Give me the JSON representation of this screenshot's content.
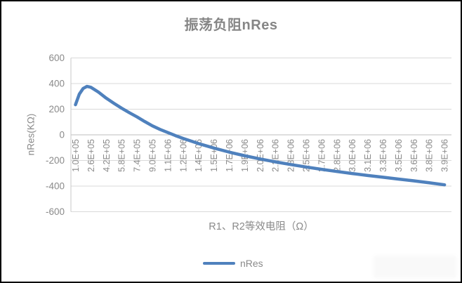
{
  "colors": {
    "line": "#4f81bd",
    "title_text": "#868686",
    "axis_text": "#8a8a8a",
    "gridline": "#d9d9d9",
    "zero_axis_line": "#bdbdbd",
    "y_axis_line": "#c9c9c9",
    "border": "#000000",
    "background": "#ffffff"
  },
  "chart_data": {
    "type": "line",
    "title": "振荡负阻nRes",
    "xlabel": "R1、R2等效电阻（Ω）",
    "ylabel": "nRes(KΩ)",
    "grid": true,
    "legend_position": "bottom-center",
    "ylim": [
      -600,
      600
    ],
    "xlim": [
      100000,
      4000000
    ],
    "y_ticks": [
      600,
      400,
      200,
      0,
      -200,
      -400,
      -600
    ],
    "x_tick_labels": [
      "1.0E+05",
      "2.6E+05",
      "4.2E+05",
      "5.8E+05",
      "7.4E+05",
      "9.0E+05",
      "1.1E+06",
      "1.2E+06",
      "1.4E+06",
      "1.5E+06",
      "1.7E+06",
      "1.9E+06",
      "2.0E+06",
      "2.2E+06",
      "2.3E+06",
      "2.5E+06",
      "2.7E+06",
      "2.8E+06",
      "3.0E+06",
      "3.1E+06",
      "3.3E+06",
      "3.5E+06",
      "3.6E+06",
      "3.8E+06",
      "3.9E+06"
    ],
    "x_tick_step_ohm": 160000,
    "series": [
      {
        "name": "nRes",
        "color": "#4f81bd",
        "points": [
          [
            100000,
            235
          ],
          [
            140000,
            318
          ],
          [
            180000,
            362
          ],
          [
            220000,
            378
          ],
          [
            260000,
            371
          ],
          [
            340000,
            333
          ],
          [
            420000,
            286
          ],
          [
            500000,
            246
          ],
          [
            580000,
            208
          ],
          [
            660000,
            173
          ],
          [
            740000,
            140
          ],
          [
            820000,
            104
          ],
          [
            900000,
            70
          ],
          [
            980000,
            42
          ],
          [
            1060000,
            18
          ],
          [
            1140000,
            -6
          ],
          [
            1220000,
            -28
          ],
          [
            1380000,
            -68
          ],
          [
            1540000,
            -103
          ],
          [
            1700000,
            -135
          ],
          [
            1860000,
            -163
          ],
          [
            2020000,
            -188
          ],
          [
            2180000,
            -211
          ],
          [
            2340000,
            -232
          ],
          [
            2500000,
            -251
          ],
          [
            2660000,
            -269
          ],
          [
            2820000,
            -286
          ],
          [
            2980000,
            -302
          ],
          [
            3140000,
            -317
          ],
          [
            3300000,
            -331
          ],
          [
            3460000,
            -345
          ],
          [
            3620000,
            -359
          ],
          [
            3780000,
            -374
          ],
          [
            3940000,
            -390
          ]
        ]
      }
    ]
  }
}
